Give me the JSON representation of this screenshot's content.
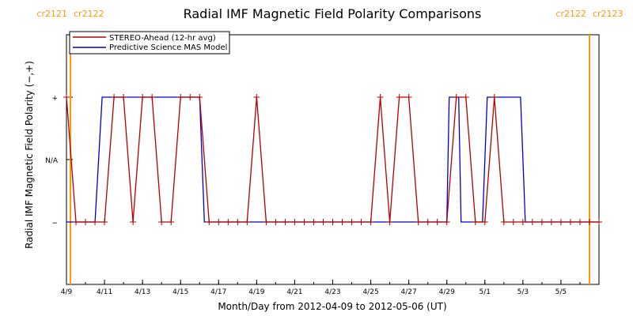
{
  "chart_data": {
    "type": "line",
    "title": "Radial IMF Magnetic Field Polarity Comparisons",
    "xlabel": "Month/Day from 2012-04-09 to 2012-05-06 (UT)",
    "ylabel": "Radial IMF Magnetic Field Polarity (−,+)",
    "x_unit": "date",
    "xlim": [
      "2012-04-09",
      "2012-05-07"
    ],
    "x_ticks": [
      {
        "date": "2012-04-09",
        "label": "4/9"
      },
      {
        "date": "2012-04-11",
        "label": "4/11"
      },
      {
        "date": "2012-04-13",
        "label": "4/13"
      },
      {
        "date": "2012-04-15",
        "label": "4/15"
      },
      {
        "date": "2012-04-17",
        "label": "4/17"
      },
      {
        "date": "2012-04-19",
        "label": "4/19"
      },
      {
        "date": "2012-04-21",
        "label": "4/21"
      },
      {
        "date": "2012-04-23",
        "label": "4/23"
      },
      {
        "date": "2012-04-25",
        "label": "4/25"
      },
      {
        "date": "2012-04-27",
        "label": "4/27"
      },
      {
        "date": "2012-04-29",
        "label": "4/29"
      },
      {
        "date": "2012-05-01",
        "label": "5/1"
      },
      {
        "date": "2012-05-03",
        "label": "5/3"
      },
      {
        "date": "2012-05-05",
        "label": "5/5"
      }
    ],
    "y_categories": [
      {
        "label": "−",
        "value": -1
      },
      {
        "label": "N/A",
        "value": 0
      },
      {
        "label": "+",
        "value": 1
      }
    ],
    "ylim": [
      -2,
      2
    ],
    "carrington_markers": [
      {
        "left": "cr2121",
        "right": "cr2122",
        "date": "2012-04-09T05:00"
      },
      {
        "left": "cr2122",
        "right": "cr2123",
        "date": "2012-05-06T12:00"
      }
    ],
    "legend": {
      "position": "top-left"
    },
    "colors": {
      "stereo": "#b40000",
      "model": "#0000cc",
      "carrington": "#ff9900"
    },
    "series": [
      {
        "name": "STEREO-Ahead (12-hr avg)",
        "color": "#b40000",
        "markers": true,
        "points": [
          [
            "2012-04-09T00:00",
            1
          ],
          [
            "2012-04-09T12:00",
            -1
          ],
          [
            "2012-04-10T00:00",
            -1
          ],
          [
            "2012-04-10T12:00",
            -1
          ],
          [
            "2012-04-11T00:00",
            -1
          ],
          [
            "2012-04-11T12:00",
            1
          ],
          [
            "2012-04-12T00:00",
            1
          ],
          [
            "2012-04-12T12:00",
            -1
          ],
          [
            "2012-04-13T00:00",
            1
          ],
          [
            "2012-04-13T12:00",
            1
          ],
          [
            "2012-04-14T00:00",
            -1
          ],
          [
            "2012-04-14T12:00",
            -1
          ],
          [
            "2012-04-15T00:00",
            1
          ],
          [
            "2012-04-15T12:00",
            1
          ],
          [
            "2012-04-16T00:00",
            1
          ],
          [
            "2012-04-16T12:00",
            -1
          ],
          [
            "2012-04-17T00:00",
            -1
          ],
          [
            "2012-04-17T12:00",
            -1
          ],
          [
            "2012-04-18T00:00",
            -1
          ],
          [
            "2012-04-18T12:00",
            -1
          ],
          [
            "2012-04-19T00:00",
            1
          ],
          [
            "2012-04-19T12:00",
            -1
          ],
          [
            "2012-04-20T00:00",
            -1
          ],
          [
            "2012-04-20T12:00",
            -1
          ],
          [
            "2012-04-21T00:00",
            -1
          ],
          [
            "2012-04-21T12:00",
            -1
          ],
          [
            "2012-04-22T00:00",
            -1
          ],
          [
            "2012-04-22T12:00",
            -1
          ],
          [
            "2012-04-23T00:00",
            -1
          ],
          [
            "2012-04-23T12:00",
            -1
          ],
          [
            "2012-04-24T00:00",
            -1
          ],
          [
            "2012-04-24T12:00",
            -1
          ],
          [
            "2012-04-25T00:00",
            -1
          ],
          [
            "2012-04-25T12:00",
            1
          ],
          [
            "2012-04-26T00:00",
            -1
          ],
          [
            "2012-04-26T12:00",
            1
          ],
          [
            "2012-04-27T00:00",
            1
          ],
          [
            "2012-04-27T12:00",
            -1
          ],
          [
            "2012-04-28T00:00",
            -1
          ],
          [
            "2012-04-28T12:00",
            -1
          ],
          [
            "2012-04-29T00:00",
            -1
          ],
          [
            "2012-04-29T12:00",
            1
          ],
          [
            "2012-04-30T00:00",
            1
          ],
          [
            "2012-04-30T12:00",
            -1
          ],
          [
            "2012-05-01T00:00",
            -1
          ],
          [
            "2012-05-01T12:00",
            1
          ],
          [
            "2012-05-02T00:00",
            -1
          ],
          [
            "2012-05-02T12:00",
            -1
          ],
          [
            "2012-05-03T00:00",
            -1
          ],
          [
            "2012-05-03T12:00",
            -1
          ],
          [
            "2012-05-04T00:00",
            -1
          ],
          [
            "2012-05-04T12:00",
            -1
          ],
          [
            "2012-05-05T00:00",
            -1
          ],
          [
            "2012-05-05T12:00",
            -1
          ],
          [
            "2012-05-06T00:00",
            -1
          ],
          [
            "2012-05-06T12:00",
            -1
          ],
          [
            "2012-05-07T00:00",
            -1
          ]
        ]
      },
      {
        "name": "Predictive Science MAS Model",
        "color": "#0000cc",
        "markers": false,
        "points": [
          [
            "2012-04-09T00:00",
            -1
          ],
          [
            "2012-04-10T12:00",
            -1
          ],
          [
            "2012-04-10T21:00",
            1
          ],
          [
            "2012-04-16T00:00",
            1
          ],
          [
            "2012-04-16T06:00",
            -1
          ],
          [
            "2012-04-29T00:00",
            -1
          ],
          [
            "2012-04-29T03:00",
            1
          ],
          [
            "2012-04-29T15:00",
            1
          ],
          [
            "2012-04-29T18:00",
            -1
          ],
          [
            "2012-04-30T21:00",
            -1
          ],
          [
            "2012-05-01T03:00",
            1
          ],
          [
            "2012-05-02T21:00",
            1
          ],
          [
            "2012-05-03T03:00",
            -1
          ],
          [
            "2012-05-07T00:00",
            -1
          ]
        ]
      }
    ]
  }
}
